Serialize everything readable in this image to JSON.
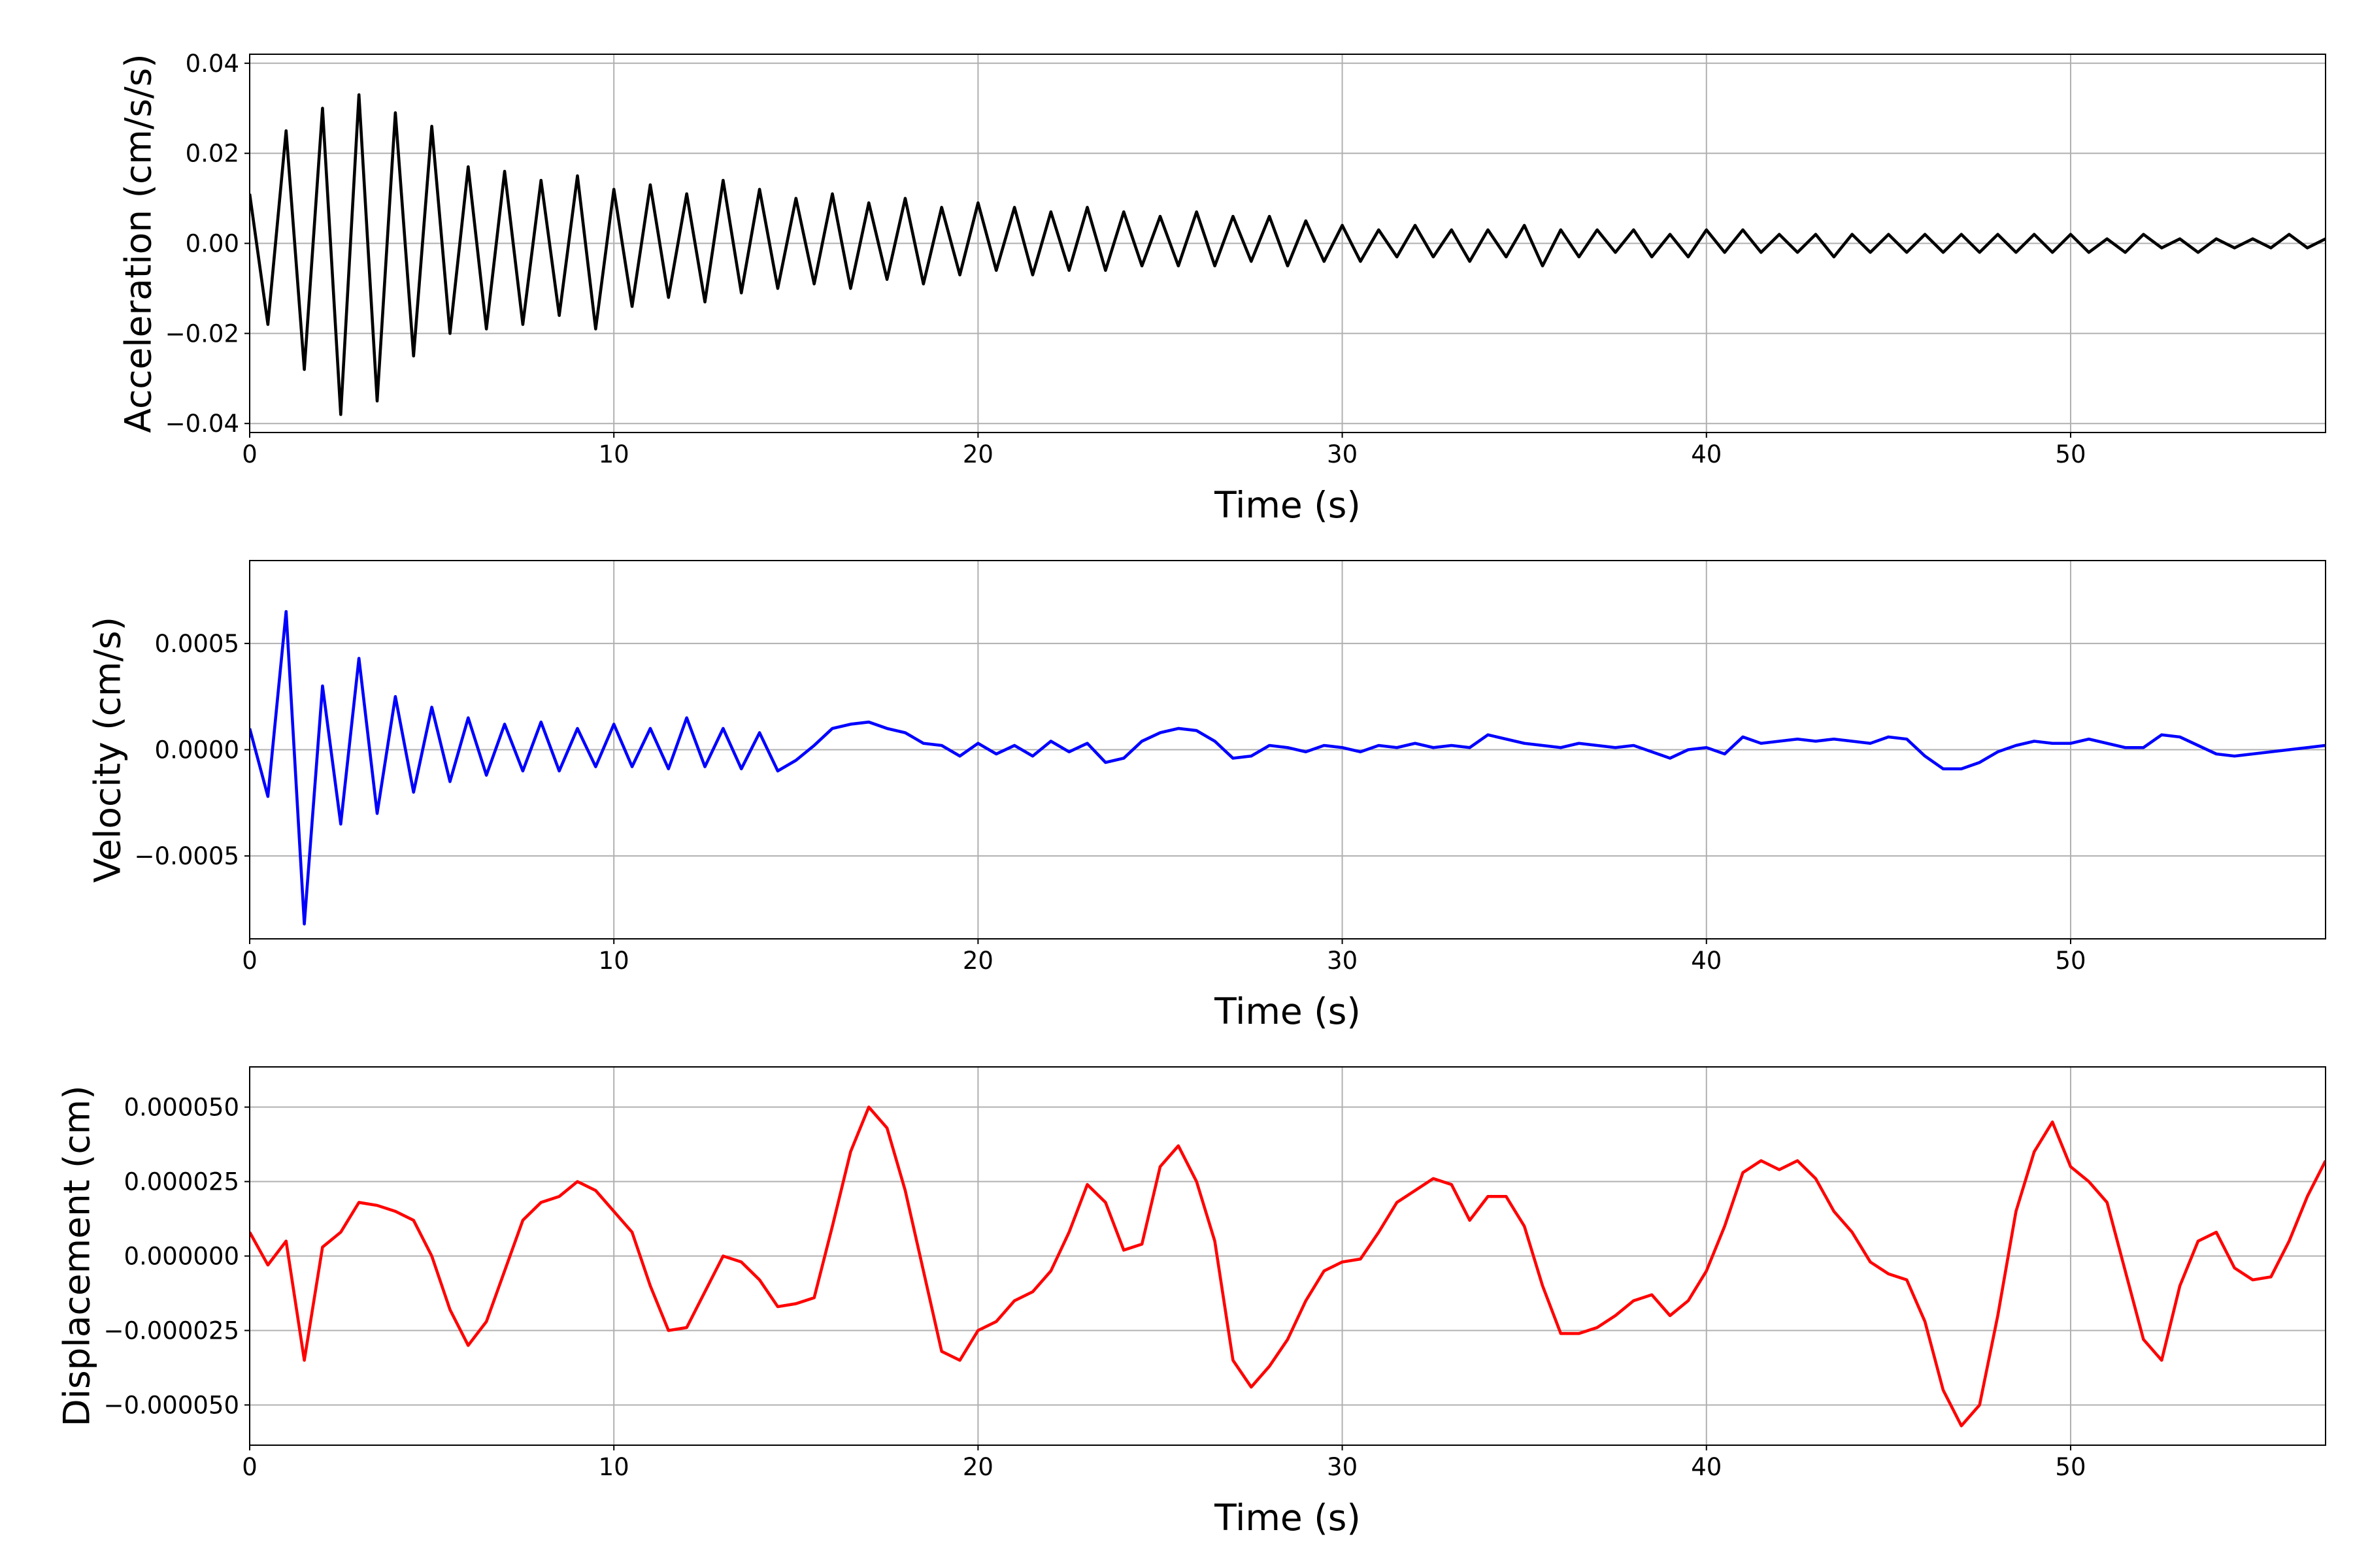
{
  "chart_data": [
    {
      "type": "line",
      "xlabel": "Time (s)",
      "ylabel": "Acceleration (cm/s/s)",
      "xlim": [
        0,
        57
      ],
      "xticks": [
        0,
        10,
        20,
        30,
        40,
        50
      ],
      "ylim": [
        -0.042,
        0.042
      ],
      "yticks": [
        {
          "value": -0.04,
          "label": "−0.04"
        },
        {
          "value": -0.02,
          "label": "−0.02"
        },
        {
          "value": 0,
          "label": "0.00"
        },
        0.02,
        0.04
      ],
      "grid": true,
      "x": [
        0,
        0.5,
        1,
        1.5,
        2,
        2.5,
        3,
        3.5,
        4,
        4.5,
        5,
        5.5,
        6,
        6.5,
        7,
        7.5,
        8,
        8.5,
        9,
        9.5,
        10,
        10.5,
        11,
        11.5,
        12,
        12.5,
        13,
        13.5,
        14,
        14.5,
        15,
        15.5,
        16,
        16.5,
        17,
        17.5,
        18,
        18.5,
        19,
        19.5,
        20,
        20.5,
        21,
        21.5,
        22,
        22.5,
        23,
        23.5,
        24,
        24.5,
        25,
        25.5,
        26,
        26.5,
        27,
        27.5,
        28,
        28.5,
        29,
        29.5,
        30,
        30.5,
        31,
        31.5,
        32,
        32.5,
        33,
        33.5,
        34,
        34.5,
        35,
        35.5,
        36,
        36.5,
        37,
        37.5,
        38,
        38.5,
        39,
        39.5,
        40,
        40.5,
        41,
        41.5,
        42,
        42.5,
        43,
        43.5,
        44,
        44.5,
        45,
        45.5,
        46,
        46.5,
        47,
        47.5,
        48,
        48.5,
        49,
        49.5,
        50,
        50.5,
        51,
        51.5,
        52,
        52.5,
        53,
        53.5,
        54,
        54.5,
        55,
        55.5,
        56,
        56.5,
        57
      ],
      "series": [
        {
          "color": "#000000",
          "values": [
            0.011,
            -0.018,
            0.025,
            -0.028,
            0.03,
            -0.038,
            0.033,
            -0.035,
            0.029,
            -0.025,
            0.026,
            -0.02,
            0.017,
            -0.019,
            0.016,
            -0.018,
            0.014,
            -0.016,
            0.015,
            -0.019,
            0.012,
            -0.014,
            0.013,
            -0.012,
            0.011,
            -0.013,
            0.014,
            -0.011,
            0.012,
            -0.01,
            0.01,
            -0.009,
            0.011,
            -0.01,
            0.009,
            -0.008,
            0.01,
            -0.009,
            0.008,
            -0.007,
            0.009,
            -0.006,
            0.008,
            -0.007,
            0.007,
            -0.006,
            0.008,
            -0.006,
            0.007,
            -0.005,
            0.006,
            -0.005,
            0.007,
            -0.005,
            0.006,
            -0.004,
            0.006,
            -0.005,
            0.005,
            -0.004,
            0.004,
            -0.004,
            0.003,
            -0.003,
            0.004,
            -0.003,
            0.003,
            -0.004,
            0.003,
            -0.003,
            0.004,
            -0.005,
            0.003,
            -0.003,
            0.003,
            -0.002,
            0.003,
            -0.003,
            0.002,
            -0.003,
            0.003,
            -0.002,
            0.003,
            -0.002,
            0.002,
            -0.002,
            0.002,
            -0.003,
            0.002,
            -0.002,
            0.002,
            -0.002,
            0.002,
            -0.002,
            0.002,
            -0.002,
            0.002,
            -0.002,
            0.002,
            -0.002,
            0.002,
            -0.002,
            0.001,
            -0.002,
            0.002,
            -0.001,
            0.001,
            -0.002,
            0.001,
            -0.001,
            0.001,
            -0.001,
            0.002,
            -0.001,
            0.001
          ]
        }
      ]
    },
    {
      "type": "line",
      "xlabel": "Time (s)",
      "ylabel": "Velocity (cm/s)",
      "xlim": [
        0,
        57
      ],
      "xticks": [
        0,
        10,
        20,
        30,
        40,
        50
      ],
      "ylim": [
        -0.00089,
        0.00089
      ],
      "yticks": [
        {
          "value": -0.0005,
          "label": "−0.0005"
        },
        {
          "value": 0,
          "label": "0.0000"
        },
        0.0005
      ],
      "grid": true,
      "x": [
        0,
        0.5,
        1,
        1.5,
        2,
        2.5,
        3,
        3.5,
        4,
        4.5,
        5,
        5.5,
        6,
        6.5,
        7,
        7.5,
        8,
        8.5,
        9,
        9.5,
        10,
        10.5,
        11,
        11.5,
        12,
        12.5,
        13,
        13.5,
        14,
        14.5,
        15,
        15.5,
        16,
        16.5,
        17,
        17.5,
        18,
        18.5,
        19,
        19.5,
        20,
        20.5,
        21,
        21.5,
        22,
        22.5,
        23,
        23.5,
        24,
        24.5,
        25,
        25.5,
        26,
        26.5,
        27,
        27.5,
        28,
        28.5,
        29,
        29.5,
        30,
        30.5,
        31,
        31.5,
        32,
        32.5,
        33,
        33.5,
        34,
        34.5,
        35,
        35.5,
        36,
        36.5,
        37,
        37.5,
        38,
        38.5,
        39,
        39.5,
        40,
        40.5,
        41,
        41.5,
        42,
        42.5,
        43,
        43.5,
        44,
        44.5,
        45,
        45.5,
        46,
        46.5,
        47,
        47.5,
        48,
        48.5,
        49,
        49.5,
        50,
        50.5,
        51,
        51.5,
        52,
        52.5,
        53,
        53.5,
        54,
        54.5,
        55,
        55.5,
        56,
        56.5,
        57
      ],
      "series": [
        {
          "color": "#0000ff",
          "values": [
            0.0001,
            -0.00022,
            0.00065,
            -0.00082,
            0.0003,
            -0.00035,
            0.00043,
            -0.0003,
            0.00025,
            -0.0002,
            0.0002,
            -0.00015,
            0.00015,
            -0.00012,
            0.00012,
            -0.0001,
            0.00013,
            -0.0001,
            0.0001,
            -8e-05,
            0.00012,
            -8e-05,
            0.0001,
            -9e-05,
            0.00015,
            -8e-05,
            0.0001,
            -9e-05,
            8e-05,
            -0.0001,
            -5e-05,
            2e-05,
            0.0001,
            0.00012,
            0.00013,
            0.0001,
            8e-05,
            3e-05,
            2e-05,
            -3e-05,
            3e-05,
            -2e-05,
            2e-05,
            -3e-05,
            4e-05,
            -1e-05,
            3e-05,
            -6e-05,
            -4e-05,
            4e-05,
            8e-05,
            0.0001,
            9e-05,
            4e-05,
            -4e-05,
            -3e-05,
            2e-05,
            1e-05,
            -1e-05,
            2e-05,
            1e-05,
            -1e-05,
            2e-05,
            1e-05,
            3e-05,
            1e-05,
            2e-05,
            1e-05,
            7e-05,
            5e-05,
            3e-05,
            2e-05,
            1e-05,
            3e-05,
            2e-05,
            1e-05,
            2e-05,
            -1e-05,
            -4e-05,
            0,
            1e-05,
            -2e-05,
            6e-05,
            3e-05,
            4e-05,
            5e-05,
            4e-05,
            5e-05,
            4e-05,
            3e-05,
            6e-05,
            5e-05,
            -3e-05,
            -9e-05,
            -9e-05,
            -6e-05,
            -1e-05,
            2e-05,
            4e-05,
            3e-05,
            3e-05,
            5e-05,
            3e-05,
            1e-05,
            1e-05,
            7e-05,
            6e-05,
            2e-05,
            -2e-05,
            -3e-05,
            -2e-05,
            -1e-05,
            0,
            1e-05,
            2e-05
          ]
        }
      ]
    },
    {
      "type": "line",
      "xlabel": "Time (s)",
      "ylabel": "Displacement (cm)",
      "xlim": [
        0,
        57
      ],
      "xticks": [
        0,
        10,
        20,
        30,
        40,
        50
      ],
      "ylim": [
        -6.35e-05,
        6.35e-05
      ],
      "yticks": [
        {
          "value": -5e-05,
          "label": "−0.000050"
        },
        {
          "value": -2.5e-05,
          "label": "−0.000025"
        },
        {
          "value": 0,
          "label": "0.000000"
        },
        {
          "value": 2.5e-05,
          "label": "0.000025"
        },
        {
          "value": 5e-05,
          "label": "0.000050"
        }
      ],
      "grid": true,
      "x": [
        0,
        0.5,
        1,
        1.5,
        2,
        2.5,
        3,
        3.5,
        4,
        4.5,
        5,
        5.5,
        6,
        6.5,
        7,
        7.5,
        8,
        8.5,
        9,
        9.5,
        10,
        10.5,
        11,
        11.5,
        12,
        12.5,
        13,
        13.5,
        14,
        14.5,
        15,
        15.5,
        16,
        16.5,
        17,
        17.5,
        18,
        18.5,
        19,
        19.5,
        20,
        20.5,
        21,
        21.5,
        22,
        22.5,
        23,
        23.5,
        24,
        24.5,
        25,
        25.5,
        26,
        26.5,
        27,
        27.5,
        28,
        28.5,
        29,
        29.5,
        30,
        30.5,
        31,
        31.5,
        32,
        32.5,
        33,
        33.5,
        34,
        34.5,
        35,
        35.5,
        36,
        36.5,
        37,
        37.5,
        38,
        38.5,
        39,
        39.5,
        40,
        40.5,
        41,
        41.5,
        42,
        42.5,
        43,
        43.5,
        44,
        44.5,
        45,
        45.5,
        46,
        46.5,
        47,
        47.5,
        48,
        48.5,
        49,
        49.5,
        50,
        50.5,
        51,
        51.5,
        52,
        52.5,
        53,
        53.5,
        54,
        54.5,
        55,
        55.5,
        56,
        56.5,
        57
      ],
      "series": [
        {
          "color": "#ff0000",
          "values": [
            8e-06,
            -3e-06,
            5e-06,
            -3.5e-05,
            3e-06,
            8e-06,
            1.8e-05,
            1.7e-05,
            1.5e-05,
            1.2e-05,
            0,
            -1.8e-05,
            -3e-05,
            -2.2e-05,
            -5e-06,
            1.2e-05,
            1.8e-05,
            2e-05,
            2.5e-05,
            2.2e-05,
            1.5e-05,
            8e-06,
            -1e-05,
            -2.5e-05,
            -2.4e-05,
            -1.2e-05,
            0,
            -2e-06,
            -8e-06,
            -1.7e-05,
            -1.6e-05,
            -1.4e-05,
            1e-05,
            3.5e-05,
            5e-05,
            4.3e-05,
            2.2e-05,
            -5e-06,
            -3.2e-05,
            -3.5e-05,
            -2.5e-05,
            -2.2e-05,
            -1.5e-05,
            -1.2e-05,
            -5e-06,
            8e-06,
            2.4e-05,
            1.8e-05,
            2e-06,
            4e-06,
            3e-05,
            3.7e-05,
            2.5e-05,
            5e-06,
            -3.5e-05,
            -4.4e-05,
            -3.7e-05,
            -2.8e-05,
            -1.5e-05,
            -5e-06,
            -2e-06,
            -1e-06,
            8e-06,
            1.8e-05,
            2.2e-05,
            2.6e-05,
            2.4e-05,
            1.2e-05,
            2e-05,
            2e-05,
            1e-05,
            -1e-05,
            -2.6e-05,
            -2.6e-05,
            -2.4e-05,
            -2e-05,
            -1.5e-05,
            -1.3e-05,
            -2e-05,
            -1.5e-05,
            -5e-06,
            1e-05,
            2.8e-05,
            3.2e-05,
            2.9e-05,
            3.2e-05,
            2.6e-05,
            1.5e-05,
            8e-06,
            -2e-06,
            -6e-06,
            -8e-06,
            -2.2e-05,
            -4.5e-05,
            -5.7e-05,
            -5e-05,
            -2e-05,
            1.5e-05,
            3.5e-05,
            4.5e-05,
            3e-05,
            2.5e-05,
            1.8e-05,
            -5e-06,
            -2.8e-05,
            -3.5e-05,
            -1e-05,
            5e-06,
            8e-06,
            -4e-06,
            -8e-06,
            -7e-06,
            5e-06,
            2e-05,
            3.2e-05
          ]
        }
      ]
    }
  ]
}
